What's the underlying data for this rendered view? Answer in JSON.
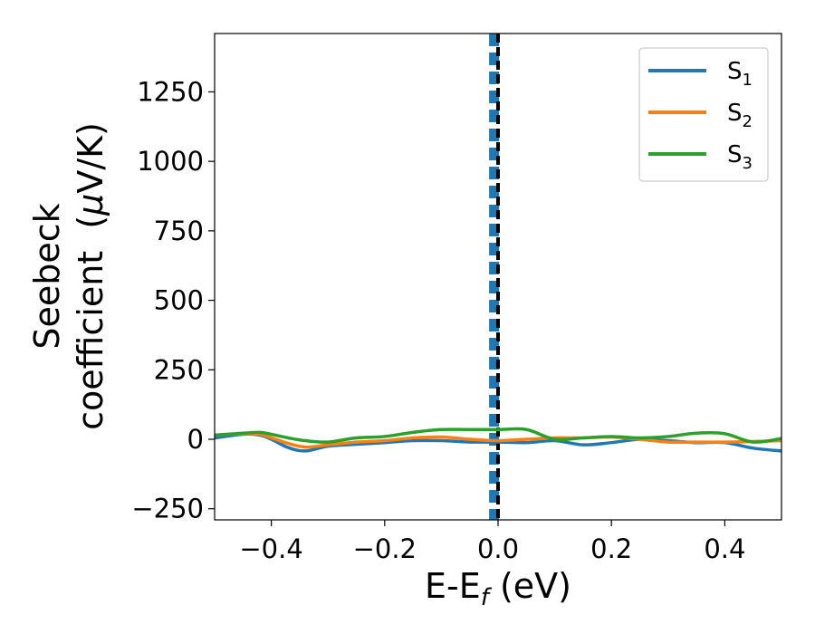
{
  "chart_data": {
    "type": "line",
    "xlabel": {
      "main": "E-E",
      "sub": "f",
      "tail": " (eV)"
    },
    "ylabel": {
      "line1": "Seebeck",
      "line2": "coefficient  (",
      "mu": "μ",
      "tail": "V/K)"
    },
    "xlim": [
      -0.5,
      0.5
    ],
    "ylim": [
      -290,
      1460
    ],
    "xticks": [
      -0.4,
      -0.2,
      0.0,
      0.2,
      0.4
    ],
    "xtick_labels": [
      "−0.4",
      "−0.2",
      "0.0",
      "0.2",
      "0.4"
    ],
    "yticks": [
      -250,
      0,
      250,
      500,
      750,
      1000,
      1250
    ],
    "ytick_labels": [
      "−250",
      "0",
      "250",
      "500",
      "750",
      "1000",
      "1250"
    ],
    "grid": false,
    "legend_position": "top-right",
    "vlines": [
      {
        "x": -0.007,
        "style": "dashed",
        "color": "#1f77b4"
      },
      {
        "x": 0.0,
        "style": "dashed",
        "color": "#000000"
      }
    ],
    "x": [
      -0.5,
      -0.45,
      -0.42,
      -0.4,
      -0.37,
      -0.34,
      -0.3,
      -0.25,
      -0.2,
      -0.15,
      -0.1,
      -0.05,
      0.0,
      0.05,
      0.1,
      0.15,
      0.2,
      0.25,
      0.3,
      0.35,
      0.4,
      0.45,
      0.5
    ],
    "series": [
      {
        "name": "S",
        "sub": "1",
        "color": "#1f77b4",
        "values": [
          5,
          18,
          15,
          0,
          -30,
          -42,
          -25,
          -18,
          -12,
          -5,
          -5,
          -10,
          -10,
          -12,
          -5,
          -20,
          -12,
          0,
          -5,
          -12,
          -12,
          -32,
          -42
        ]
      },
      {
        "name": "S",
        "sub": "2",
        "color": "#ff7f0e",
        "values": [
          15,
          20,
          18,
          5,
          -15,
          -28,
          -20,
          -10,
          -5,
          5,
          8,
          0,
          -5,
          0,
          5,
          5,
          8,
          0,
          -10,
          -10,
          -10,
          -8,
          -5
        ]
      },
      {
        "name": "S",
        "sub": "3",
        "color": "#2ca02c",
        "values": [
          15,
          22,
          25,
          18,
          5,
          -5,
          -10,
          5,
          10,
          25,
          35,
          35,
          35,
          35,
          0,
          5,
          10,
          5,
          10,
          22,
          20,
          -10,
          3
        ]
      }
    ]
  }
}
